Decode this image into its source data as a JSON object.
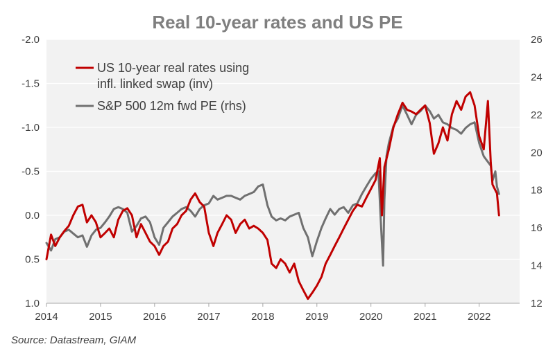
{
  "chart_data": {
    "type": "line",
    "title": "Real 10-year rates and US PE",
    "source": "Source: Datastream, GIAM",
    "x_tick_labels": [
      "2014",
      "2015",
      "2016",
      "2017",
      "2018",
      "2019",
      "2020",
      "2021",
      "2022"
    ],
    "xlim": [
      "2014-01-01",
      "2022-10-01"
    ],
    "y_left": {
      "ylim": [
        -2.0,
        1.0
      ],
      "inverted": true,
      "tick_values": [
        -2.0,
        -1.5,
        -1.0,
        -0.5,
        0.0,
        0.5,
        1.0
      ],
      "tick_labels": [
        "-2.0",
        "-1.5",
        "-1.0",
        "-0.5",
        "0.0",
        "0.5",
        "1.0"
      ]
    },
    "y_right": {
      "ylim": [
        12,
        26
      ],
      "tick_values": [
        12,
        14,
        16,
        18,
        20,
        22,
        24,
        26
      ],
      "tick_labels": [
        "12",
        "14",
        "16",
        "18",
        "20",
        "22",
        "24",
        "26"
      ]
    },
    "grid": "horizontal",
    "legend_position": "top-left",
    "series": [
      {
        "name_lines": [
          "US 10-year real rates using",
          "infl. linked swap (inv)"
        ],
        "color": "#c00000",
        "axis": "left",
        "points": [
          [
            "2014-01-01",
            0.5
          ],
          [
            "2014-02-01",
            0.22
          ],
          [
            "2014-03-01",
            0.35
          ],
          [
            "2014-04-01",
            0.25
          ],
          [
            "2014-05-01",
            0.18
          ],
          [
            "2014-06-01",
            0.12
          ],
          [
            "2014-07-01",
            0.0
          ],
          [
            "2014-08-01",
            -0.1
          ],
          [
            "2014-09-01",
            -0.12
          ],
          [
            "2014-10-01",
            0.08
          ],
          [
            "2014-11-01",
            0.0
          ],
          [
            "2014-12-01",
            0.08
          ],
          [
            "2015-01-01",
            0.25
          ],
          [
            "2015-02-01",
            0.2
          ],
          [
            "2015-03-01",
            0.15
          ],
          [
            "2015-04-01",
            0.25
          ],
          [
            "2015-05-01",
            0.05
          ],
          [
            "2015-06-01",
            -0.05
          ],
          [
            "2015-07-01",
            -0.08
          ],
          [
            "2015-08-01",
            0.0
          ],
          [
            "2015-09-01",
            0.25
          ],
          [
            "2015-10-01",
            0.1
          ],
          [
            "2015-11-01",
            0.2
          ],
          [
            "2015-12-01",
            0.3
          ],
          [
            "2016-01-01",
            0.35
          ],
          [
            "2016-02-01",
            0.45
          ],
          [
            "2016-03-01",
            0.35
          ],
          [
            "2016-04-01",
            0.3
          ],
          [
            "2016-05-01",
            0.15
          ],
          [
            "2016-06-01",
            0.1
          ],
          [
            "2016-07-01",
            0.0
          ],
          [
            "2016-08-01",
            -0.05
          ],
          [
            "2016-09-01",
            -0.18
          ],
          [
            "2016-10-01",
            -0.25
          ],
          [
            "2016-11-01",
            -0.15
          ],
          [
            "2016-12-01",
            -0.1
          ],
          [
            "2017-01-01",
            0.2
          ],
          [
            "2017-02-01",
            0.35
          ],
          [
            "2017-03-01",
            0.2
          ],
          [
            "2017-04-01",
            0.1
          ],
          [
            "2017-05-01",
            0.0
          ],
          [
            "2017-06-01",
            0.05
          ],
          [
            "2017-07-01",
            0.2
          ],
          [
            "2017-08-01",
            0.1
          ],
          [
            "2017-09-01",
            0.05
          ],
          [
            "2017-10-01",
            0.15
          ],
          [
            "2017-11-01",
            0.12
          ],
          [
            "2017-12-01",
            0.15
          ],
          [
            "2018-01-01",
            0.2
          ],
          [
            "2018-02-01",
            0.28
          ],
          [
            "2018-03-01",
            0.55
          ],
          [
            "2018-04-01",
            0.6
          ],
          [
            "2018-05-01",
            0.5
          ],
          [
            "2018-06-01",
            0.55
          ],
          [
            "2018-07-01",
            0.65
          ],
          [
            "2018-08-01",
            0.55
          ],
          [
            "2018-09-01",
            0.75
          ],
          [
            "2018-10-01",
            0.85
          ],
          [
            "2018-11-01",
            0.95
          ],
          [
            "2018-12-01",
            0.88
          ],
          [
            "2019-01-01",
            0.8
          ],
          [
            "2019-02-01",
            0.7
          ],
          [
            "2019-03-01",
            0.55
          ],
          [
            "2019-04-01",
            0.45
          ],
          [
            "2019-05-01",
            0.35
          ],
          [
            "2019-06-01",
            0.25
          ],
          [
            "2019-07-01",
            0.15
          ],
          [
            "2019-08-01",
            0.05
          ],
          [
            "2019-09-01",
            -0.05
          ],
          [
            "2019-10-01",
            -0.12
          ],
          [
            "2019-11-01",
            -0.1
          ],
          [
            "2019-12-01",
            -0.2
          ],
          [
            "2020-01-01",
            -0.3
          ],
          [
            "2020-02-01",
            -0.4
          ],
          [
            "2020-03-01",
            -0.65
          ],
          [
            "2020-03-15",
            0.0
          ],
          [
            "2020-04-01",
            -0.55
          ],
          [
            "2020-05-01",
            -0.75
          ],
          [
            "2020-06-01",
            -1.0
          ],
          [
            "2020-07-01",
            -1.15
          ],
          [
            "2020-08-01",
            -1.28
          ],
          [
            "2020-09-01",
            -1.2
          ],
          [
            "2020-10-01",
            -1.18
          ],
          [
            "2020-11-01",
            -1.15
          ],
          [
            "2020-12-01",
            -1.2
          ],
          [
            "2021-01-01",
            -1.25
          ],
          [
            "2021-02-01",
            -1.05
          ],
          [
            "2021-03-01",
            -0.7
          ],
          [
            "2021-04-01",
            -0.82
          ],
          [
            "2021-05-01",
            -1.0
          ],
          [
            "2021-06-01",
            -0.85
          ],
          [
            "2021-07-01",
            -1.15
          ],
          [
            "2021-08-01",
            -1.3
          ],
          [
            "2021-09-01",
            -1.2
          ],
          [
            "2021-10-01",
            -1.35
          ],
          [
            "2021-11-01",
            -1.4
          ],
          [
            "2021-12-01",
            -1.25
          ],
          [
            "2022-01-01",
            -0.9
          ],
          [
            "2022-02-01",
            -0.75
          ],
          [
            "2022-03-01",
            -1.3
          ],
          [
            "2022-03-20",
            -0.6
          ],
          [
            "2022-04-01",
            -0.35
          ],
          [
            "2022-05-01",
            -0.25
          ],
          [
            "2022-05-15",
            0.0
          ]
        ]
      },
      {
        "name_lines": [
          "S&P 500 12m fwd PE (rhs)"
        ],
        "color": "#707070",
        "axis": "right",
        "points": [
          [
            "2014-01-01",
            15.2
          ],
          [
            "2014-02-01",
            14.8
          ],
          [
            "2014-03-01",
            15.4
          ],
          [
            "2014-04-01",
            15.5
          ],
          [
            "2014-05-01",
            15.8
          ],
          [
            "2014-06-01",
            15.9
          ],
          [
            "2014-07-01",
            15.7
          ],
          [
            "2014-08-01",
            15.5
          ],
          [
            "2014-09-01",
            15.6
          ],
          [
            "2014-10-01",
            15.0
          ],
          [
            "2014-11-01",
            15.6
          ],
          [
            "2014-12-01",
            15.9
          ],
          [
            "2015-01-01",
            16.0
          ],
          [
            "2015-02-01",
            16.3
          ],
          [
            "2015-03-01",
            16.6
          ],
          [
            "2015-04-01",
            17.0
          ],
          [
            "2015-05-01",
            17.1
          ],
          [
            "2015-06-01",
            17.0
          ],
          [
            "2015-07-01",
            16.8
          ],
          [
            "2015-08-01",
            15.8
          ],
          [
            "2015-09-01",
            16.1
          ],
          [
            "2015-10-01",
            16.5
          ],
          [
            "2015-11-01",
            16.6
          ],
          [
            "2015-12-01",
            16.3
          ],
          [
            "2016-01-01",
            15.5
          ],
          [
            "2016-02-01",
            15.1
          ],
          [
            "2016-03-01",
            16.0
          ],
          [
            "2016-04-01",
            16.3
          ],
          [
            "2016-05-01",
            16.6
          ],
          [
            "2016-06-01",
            16.8
          ],
          [
            "2016-07-01",
            17.0
          ],
          [
            "2016-08-01",
            17.1
          ],
          [
            "2016-09-01",
            16.9
          ],
          [
            "2016-10-01",
            16.6
          ],
          [
            "2016-11-01",
            17.0
          ],
          [
            "2016-12-01",
            17.2
          ],
          [
            "2017-01-01",
            17.3
          ],
          [
            "2017-02-01",
            17.7
          ],
          [
            "2017-03-01",
            17.5
          ],
          [
            "2017-04-01",
            17.6
          ],
          [
            "2017-05-01",
            17.7
          ],
          [
            "2017-06-01",
            17.7
          ],
          [
            "2017-07-01",
            17.6
          ],
          [
            "2017-08-01",
            17.5
          ],
          [
            "2017-09-01",
            17.7
          ],
          [
            "2017-10-01",
            17.8
          ],
          [
            "2017-11-01",
            17.9
          ],
          [
            "2017-12-01",
            18.2
          ],
          [
            "2018-01-01",
            18.3
          ],
          [
            "2018-02-01",
            17.2
          ],
          [
            "2018-03-01",
            16.6
          ],
          [
            "2018-04-01",
            16.4
          ],
          [
            "2018-05-01",
            16.5
          ],
          [
            "2018-06-01",
            16.4
          ],
          [
            "2018-07-01",
            16.6
          ],
          [
            "2018-08-01",
            16.7
          ],
          [
            "2018-09-01",
            16.8
          ],
          [
            "2018-10-01",
            16.0
          ],
          [
            "2018-11-01",
            15.5
          ],
          [
            "2018-12-01",
            14.5
          ],
          [
            "2019-01-01",
            15.3
          ],
          [
            "2019-02-01",
            16.0
          ],
          [
            "2019-03-01",
            16.5
          ],
          [
            "2019-04-01",
            17.0
          ],
          [
            "2019-05-01",
            16.7
          ],
          [
            "2019-06-01",
            17.0
          ],
          [
            "2019-07-01",
            17.1
          ],
          [
            "2019-08-01",
            16.8
          ],
          [
            "2019-09-01",
            17.2
          ],
          [
            "2019-10-01",
            17.3
          ],
          [
            "2019-11-01",
            17.8
          ],
          [
            "2019-12-01",
            18.2
          ],
          [
            "2020-01-01",
            18.6
          ],
          [
            "2020-02-01",
            18.9
          ],
          [
            "2020-02-20",
            19.0
          ],
          [
            "2020-03-10",
            16.0
          ],
          [
            "2020-03-23",
            14.0
          ],
          [
            "2020-04-01",
            17.5
          ],
          [
            "2020-04-15",
            19.8
          ],
          [
            "2020-05-01",
            20.5
          ],
          [
            "2020-06-01",
            21.4
          ],
          [
            "2020-07-01",
            21.8
          ],
          [
            "2020-08-01",
            22.5
          ],
          [
            "2020-09-01",
            22.0
          ],
          [
            "2020-10-01",
            21.5
          ],
          [
            "2020-11-01",
            22.0
          ],
          [
            "2020-12-01",
            22.2
          ],
          [
            "2021-01-01",
            22.5
          ],
          [
            "2021-02-01",
            22.2
          ],
          [
            "2021-03-01",
            21.8
          ],
          [
            "2021-04-01",
            22.0
          ],
          [
            "2021-05-01",
            21.6
          ],
          [
            "2021-06-01",
            21.5
          ],
          [
            "2021-07-01",
            21.3
          ],
          [
            "2021-08-01",
            21.2
          ],
          [
            "2021-09-01",
            21.0
          ],
          [
            "2021-10-01",
            21.3
          ],
          [
            "2021-11-01",
            21.5
          ],
          [
            "2021-12-01",
            21.6
          ],
          [
            "2022-01-01",
            20.5
          ],
          [
            "2022-02-01",
            19.8
          ],
          [
            "2022-03-01",
            19.5
          ],
          [
            "2022-03-20",
            19.3
          ],
          [
            "2022-04-01",
            18.5
          ],
          [
            "2022-04-20",
            19.0
          ],
          [
            "2022-05-01",
            18.2
          ],
          [
            "2022-05-15",
            17.8
          ]
        ]
      }
    ]
  }
}
